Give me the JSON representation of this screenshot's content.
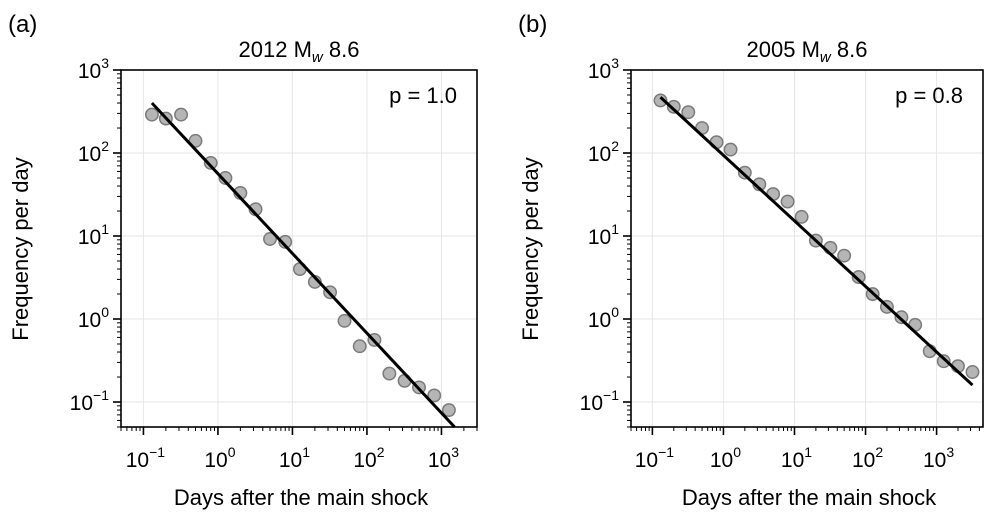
{
  "chart_data": [
    {
      "panel_label": "(a)",
      "type": "scatter",
      "title": "2012 M",
      "title_subscript": "w",
      "title_suffix": " 8.6",
      "xlabel": "Days after the main shock",
      "ylabel": "Frequency per day",
      "x_scale": "log",
      "y_scale": "log",
      "xlim": [
        0.05,
        3000
      ],
      "ylim": [
        0.05,
        1000
      ],
      "x_ticks": [
        {
          "value": 0.1,
          "base": "10",
          "exp": "−1"
        },
        {
          "value": 1,
          "base": "10",
          "exp": "0"
        },
        {
          "value": 10,
          "base": "10",
          "exp": "1"
        },
        {
          "value": 100,
          "base": "10",
          "exp": "2"
        },
        {
          "value": 1000,
          "base": "10",
          "exp": "3"
        }
      ],
      "y_ticks": [
        {
          "value": 0.1,
          "base": "10",
          "exp": "−1"
        },
        {
          "value": 1,
          "base": "10",
          "exp": "0"
        },
        {
          "value": 10,
          "base": "10",
          "exp": "1"
        },
        {
          "value": 100,
          "base": "10",
          "exp": "2"
        },
        {
          "value": 1000,
          "base": "10",
          "exp": "3"
        }
      ],
      "grid": true,
      "annotation": "p = 1.0",
      "annotation_position": "top-right",
      "points": [
        {
          "x": 0.13,
          "y": 290
        },
        {
          "x": 0.2,
          "y": 260
        },
        {
          "x": 0.32,
          "y": 290
        },
        {
          "x": 0.5,
          "y": 140
        },
        {
          "x": 0.8,
          "y": 76
        },
        {
          "x": 1.26,
          "y": 50
        },
        {
          "x": 2.0,
          "y": 33
        },
        {
          "x": 3.2,
          "y": 21
        },
        {
          "x": 5.0,
          "y": 9.2
        },
        {
          "x": 8.0,
          "y": 8.5
        },
        {
          "x": 12.6,
          "y": 4.0
        },
        {
          "x": 20,
          "y": 2.8
        },
        {
          "x": 32,
          "y": 2.1
        },
        {
          "x": 50,
          "y": 0.95
        },
        {
          "x": 80,
          "y": 0.47
        },
        {
          "x": 126,
          "y": 0.56
        },
        {
          "x": 200,
          "y": 0.22
        },
        {
          "x": 320,
          "y": 0.18
        },
        {
          "x": 500,
          "y": 0.15
        },
        {
          "x": 800,
          "y": 0.12
        },
        {
          "x": 1260,
          "y": 0.08
        }
      ],
      "fit_line": {
        "x": [
          0.13,
          1500
        ],
        "y": [
          400,
          0.05
        ]
      }
    },
    {
      "panel_label": "(b)",
      "type": "scatter",
      "title": "2005 M",
      "title_subscript": "w",
      "title_suffix": " 8.6",
      "xlabel": "Days after the main shock",
      "ylabel": "Frequency per day",
      "x_scale": "log",
      "y_scale": "log",
      "xlim": [
        0.05,
        4500
      ],
      "ylim": [
        0.05,
        1000
      ],
      "x_ticks": [
        {
          "value": 0.1,
          "base": "10",
          "exp": "−1"
        },
        {
          "value": 1,
          "base": "10",
          "exp": "0"
        },
        {
          "value": 10,
          "base": "10",
          "exp": "1"
        },
        {
          "value": 100,
          "base": "10",
          "exp": "2"
        },
        {
          "value": 1000,
          "base": "10",
          "exp": "3"
        }
      ],
      "y_ticks": [
        {
          "value": 0.1,
          "base": "10",
          "exp": "−1"
        },
        {
          "value": 1,
          "base": "10",
          "exp": "0"
        },
        {
          "value": 10,
          "base": "10",
          "exp": "1"
        },
        {
          "value": 100,
          "base": "10",
          "exp": "2"
        },
        {
          "value": 1000,
          "base": "10",
          "exp": "3"
        }
      ],
      "grid": true,
      "annotation": "p = 0.8",
      "annotation_position": "top-right",
      "points": [
        {
          "x": 0.13,
          "y": 430
        },
        {
          "x": 0.2,
          "y": 360
        },
        {
          "x": 0.32,
          "y": 310
        },
        {
          "x": 0.5,
          "y": 200
        },
        {
          "x": 0.8,
          "y": 135
        },
        {
          "x": 1.26,
          "y": 110
        },
        {
          "x": 2.0,
          "y": 58
        },
        {
          "x": 3.2,
          "y": 42
        },
        {
          "x": 5.0,
          "y": 32
        },
        {
          "x": 8.0,
          "y": 26
        },
        {
          "x": 12.6,
          "y": 17
        },
        {
          "x": 20,
          "y": 8.8
        },
        {
          "x": 32,
          "y": 7.2
        },
        {
          "x": 50,
          "y": 5.8
        },
        {
          "x": 80,
          "y": 3.2
        },
        {
          "x": 126,
          "y": 2.0
        },
        {
          "x": 200,
          "y": 1.4
        },
        {
          "x": 320,
          "y": 1.05
        },
        {
          "x": 500,
          "y": 0.85
        },
        {
          "x": 800,
          "y": 0.41
        },
        {
          "x": 1260,
          "y": 0.31
        },
        {
          "x": 2000,
          "y": 0.27
        },
        {
          "x": 3200,
          "y": 0.23
        }
      ],
      "fit_line": {
        "x": [
          0.13,
          3200
        ],
        "y": [
          470,
          0.16
        ]
      }
    }
  ],
  "style": {
    "marker_fill": "#b5b5b5",
    "marker_stroke": "#7a7a7a",
    "fit_color": "#000000",
    "grid_color": "#e6e6e6"
  }
}
